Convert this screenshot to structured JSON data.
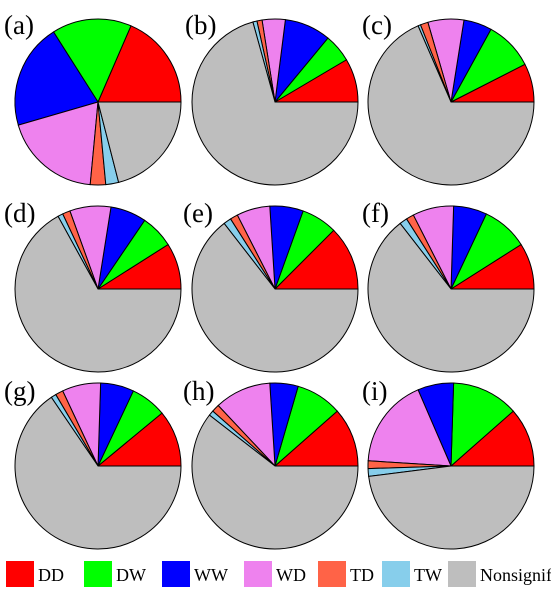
{
  "chart_data": {
    "type": "pie",
    "start": "3-oclock",
    "direction": "counterclockwise",
    "legend": {
      "placement": "bottom",
      "entries": [
        {
          "key": "DD",
          "label": "DD",
          "color": "#ff0000"
        },
        {
          "key": "DW",
          "label": "DW",
          "color": "#00ff00"
        },
        {
          "key": "WW",
          "label": "WW",
          "color": "#0000ff"
        },
        {
          "key": "WD",
          "label": "WD",
          "color": "#ee82ee"
        },
        {
          "key": "TD",
          "label": "TD",
          "color": "#ff6347"
        },
        {
          "key": "TW",
          "label": "TW",
          "color": "#87ceeb"
        },
        {
          "key": "NS",
          "label": "Nonsignificant",
          "color": "#bebebe"
        }
      ]
    },
    "charts": [
      {
        "label": "(a)",
        "values": {
          "DD": 18.5,
          "DW": 15.5,
          "WW": 20.5,
          "WD": 19.0,
          "TD": 3.0,
          "TW": 2.5,
          "NS": 21.0
        }
      },
      {
        "label": "(b)",
        "values": {
          "DD": 8.5,
          "DW": 5.5,
          "WW": 9.0,
          "WD": 4.5,
          "TD": 1.0,
          "TW": 0.8,
          "NS": 70.7
        }
      },
      {
        "label": "(c)",
        "values": {
          "DD": 7.5,
          "DW": 9.5,
          "WW": 5.5,
          "WD": 7.0,
          "TD": 1.5,
          "TW": 0.5,
          "NS": 68.5
        }
      },
      {
        "label": "(d)",
        "values": {
          "DD": 9.0,
          "DW": 6.5,
          "WW": 7.0,
          "WD": 8.0,
          "TD": 1.5,
          "TW": 1.0,
          "NS": 67.0
        }
      },
      {
        "label": "(e)",
        "values": {
          "DD": 12.5,
          "DW": 7.0,
          "WW": 6.5,
          "WD": 6.5,
          "TD": 1.5,
          "TW": 1.5,
          "NS": 64.5
        }
      },
      {
        "label": "(f)",
        "values": {
          "DD": 9.0,
          "DW": 9.0,
          "WW": 6.5,
          "WD": 8.0,
          "TD": 1.5,
          "TW": 1.5,
          "NS": 64.5
        }
      },
      {
        "label": "(g)",
        "values": {
          "DD": 11.0,
          "DW": 7.0,
          "WW": 6.5,
          "WD": 7.5,
          "TD": 1.5,
          "TW": 1.0,
          "NS": 65.5
        }
      },
      {
        "label": "(h)",
        "values": {
          "DD": 11.5,
          "DW": 9.0,
          "WW": 5.5,
          "WD": 11.0,
          "TD": 1.5,
          "TW": 1.0,
          "NS": 60.5
        }
      },
      {
        "label": "(i)",
        "values": {
          "DD": 11.5,
          "DW": 13.0,
          "WW": 7.0,
          "WD": 17.5,
          "TD": 1.5,
          "TW": 1.5,
          "NS": 48.0
        }
      }
    ]
  }
}
